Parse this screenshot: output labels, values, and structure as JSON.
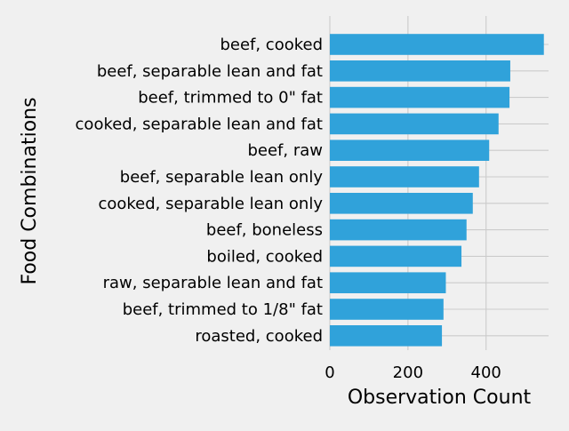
{
  "chart_data": {
    "type": "bar",
    "orientation": "horizontal",
    "title": "",
    "xlabel": "Observation Count",
    "ylabel": "Food Combinations",
    "xlim": [
      0,
      560
    ],
    "xticks": [
      0,
      200,
      400
    ],
    "grid": true,
    "bar_color": "#30a2da",
    "background_color": "#f0f0f0",
    "grid_color": "#cbcbcb",
    "categories": [
      "beef,  cooked",
      "beef,  separable lean and fat",
      "beef,  trimmed to 0\" fat",
      "cooked,  separable lean and fat",
      "beef,  raw",
      "beef,  separable lean only",
      "cooked,  separable lean only",
      "beef,  boneless",
      "boiled,  cooked",
      "raw,  separable lean and fat",
      "beef,  trimmed to 1/8\" fat",
      "roasted,  cooked"
    ],
    "values": [
      548,
      462,
      460,
      432,
      408,
      382,
      366,
      350,
      337,
      297,
      291,
      287
    ]
  }
}
